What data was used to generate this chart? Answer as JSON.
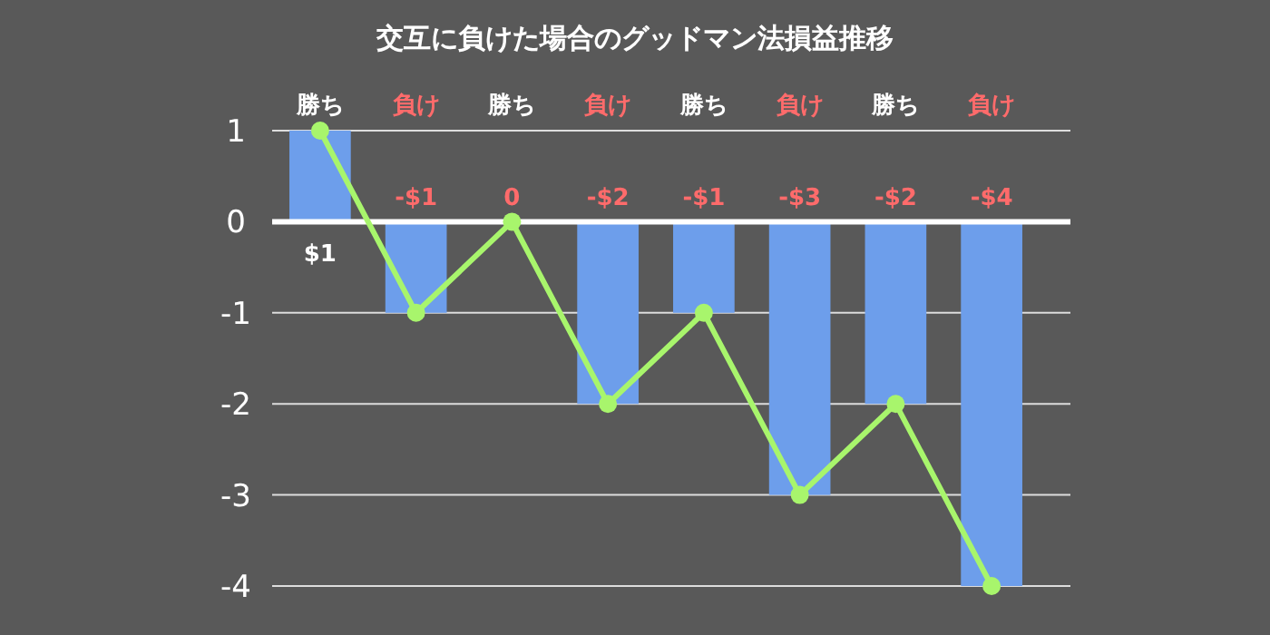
{
  "chart_data": {
    "type": "bar",
    "title": "交互に負けた場合のグッドマン法損益推移",
    "categories": [
      "勝ち",
      "負け",
      "勝ち",
      "負け",
      "勝ち",
      "負け",
      "勝ち",
      "負け"
    ],
    "series": [
      {
        "color": "#6d9eeb",
        "values": [
          1,
          -1,
          0,
          -2,
          -1,
          -3,
          -2,
          -4
        ],
        "value_labels": [
          "$1",
          "-$1",
          "0",
          "-$2",
          "-$1",
          "-$3",
          "-$2",
          "-$4"
        ]
      },
      {
        "type": "line",
        "color": "#a8f56c",
        "values": [
          1,
          -1,
          0,
          -2,
          -1,
          -3,
          -2,
          -4
        ],
        "marker": "circle"
      }
    ],
    "ylim": [
      -4,
      1
    ],
    "yticks": [
      -4,
      -3,
      -2,
      -1,
      0,
      1
    ],
    "grid": "y"
  }
}
